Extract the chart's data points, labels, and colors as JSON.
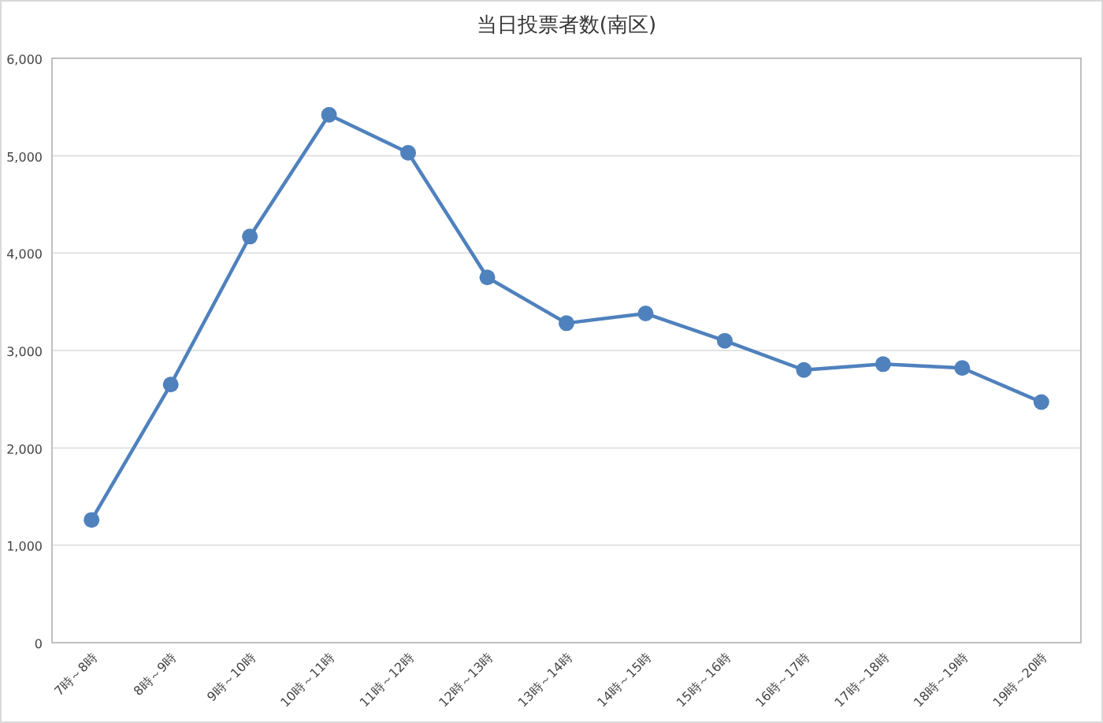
{
  "chart_data": {
    "type": "line",
    "title": "当日投票者数(南区)",
    "categories": [
      "7時～8時",
      "8時～9時",
      "9時～10時",
      "10時～11時",
      "11時～12時",
      "12時～13時",
      "13時～14時",
      "14時～15時",
      "15時～16時",
      "16時～17時",
      "17時～18時",
      "18時～19時",
      "19時～20時"
    ],
    "series": [
      {
        "color": "#4f81bd",
        "values": [
          1260,
          2650,
          4170,
          5420,
          5030,
          3750,
          3280,
          3380,
          3100,
          2800,
          2860,
          2820,
          2470
        ]
      }
    ],
    "ylim": [
      0,
      6000
    ],
    "yticks": [
      {
        "value": 0,
        "label": "0"
      },
      {
        "value": 1000,
        "label": "1,000"
      },
      {
        "value": 2000,
        "label": "2,000"
      },
      {
        "value": 3000,
        "label": "3,000"
      },
      {
        "value": 4000,
        "label": "4,000"
      },
      {
        "value": 5000,
        "label": "5,000"
      },
      {
        "value": 6000,
        "label": "6,000"
      }
    ],
    "grid": "y",
    "marker": "circle"
  }
}
